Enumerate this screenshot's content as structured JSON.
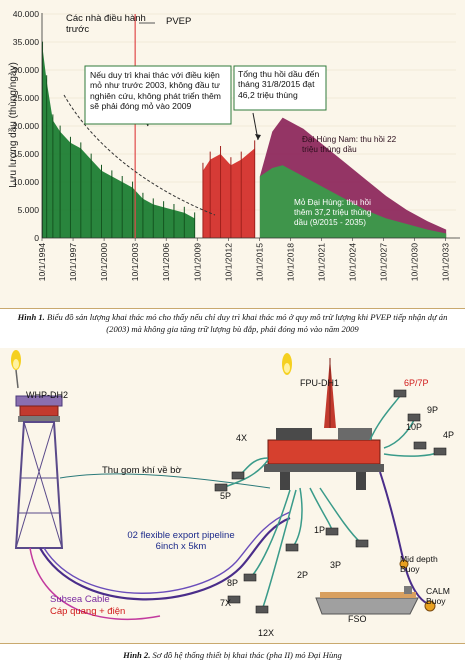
{
  "figure1": {
    "chart_data": {
      "type": "area",
      "ylabel": "Lưu lượng dầu (thùng/ngày)",
      "ylim": [
        0,
        40000
      ],
      "yticks": [
        "0",
        "5.000",
        "10.000",
        "15.000",
        "20.000",
        "25.000",
        "30.000",
        "35.000",
        "40.000"
      ],
      "xticks": [
        "10/1/1994",
        "10/1/1997",
        "10/1/2000",
        "10/1/2003",
        "10/1/2006",
        "10/1/2009",
        "10/1/2012",
        "10/1/2015",
        "10/1/2018",
        "10/1/2021",
        "10/1/2024",
        "10/1/2027",
        "10/1/2030",
        "10/1/2033"
      ],
      "legend": {
        "previous_operators": "Các nhà điều hành trước",
        "pvep": "PVEP"
      },
      "annotation_2003": "Nếu duy trì khai thác với điều kiện mỏ như trước 2003, không đầu tư nghiên cứu, không phát triển thêm sẽ phải đóng mỏ vào 2009",
      "annotation_2015": "Tổng thu hồi dầu đến tháng 31/8/2015 đạt 46,2 triệu thùng",
      "annotation_dainam": "Đại Hùng Nam: thu hồi 22 triệu thùng dầu",
      "annotation_daihung": "Mỏ Đại Hùng: thu hồi thêm 37,2 triệu thùng dầu (9/2015 - 2035)",
      "series": [
        {
          "name": "Các nhà điều hành trước",
          "color": "#1e7e34",
          "x": [
            1994.8,
            1995.2,
            1995.8,
            1996.5,
            1997.5,
            1998.5,
            1999.5,
            2000.5,
            2001.5,
            2002.5,
            2003.5,
            2004.5,
            2005.5,
            2006.5,
            2007.5,
            2008.5,
            2009.5
          ],
          "values": [
            34000,
            28000,
            21000,
            19000,
            17000,
            16000,
            14000,
            12000,
            11000,
            10000,
            9000,
            7000,
            6000,
            5500,
            5000,
            4500,
            3500
          ]
        },
        {
          "name": "PVEP",
          "color": "#d4302c",
          "x": [
            2010.3,
            2011,
            2012,
            2013,
            2014,
            2015.3
          ],
          "values": [
            12000,
            14000,
            15000,
            13000,
            14000,
            16000
          ]
        },
        {
          "name": "Mỏ Đại Hùng",
          "color": "#3a9b4a",
          "x": [
            2015.8,
            2017,
            2018,
            2020,
            2022,
            2024,
            2026,
            2028,
            2030,
            2032,
            2033.8
          ],
          "values": [
            11000,
            12500,
            13000,
            11000,
            9000,
            7000,
            5000,
            3500,
            2500,
            1500,
            800
          ]
        },
        {
          "name": "Đại Hùng Nam",
          "color": "#8e2a5e",
          "x": [
            2015.8,
            2017,
            2018,
            2020,
            2022,
            2024,
            2026,
            2028,
            2030,
            2032,
            2033.8
          ],
          "values": [
            11000,
            19000,
            21500,
            19500,
            16500,
            13500,
            10500,
            7500,
            5000,
            3000,
            1500
          ]
        }
      ]
    },
    "caption_label": "Hình 1.",
    "caption_text": "Biểu đồ sản lượng khai thác mỏ cho thấy nếu chỉ duy trì khai thác mỏ ở quy mô trừ lượng khi PVEP tiếp nhận dự án (2003) mà không gia tăng trữ lượng bù đắp, phải đóng mỏ vào năm 2009"
  },
  "figure2": {
    "labels": {
      "whp": "WHP-DH2",
      "fpu": "FPU-DH1",
      "gas": "Thu gom khí về bờ",
      "export": "02 flexible export pipeline 6inch x 5km",
      "cable1": "Subsea Cable",
      "cable2": "Cáp quang + điện",
      "fso": "FSO",
      "mid": "Mid depth Buoy",
      "calm": "CALM Buoy"
    },
    "wells": [
      "6P/7P",
      "9P",
      "10P",
      "4P",
      "4X",
      "5P",
      "1P",
      "2P",
      "3P",
      "8P",
      "7X",
      "12X"
    ],
    "caption_label": "Hình 2.",
    "caption_text": "Sơ đồ hệ thống thiết bị khai thác (pha II) mỏ Đại Hùng"
  }
}
